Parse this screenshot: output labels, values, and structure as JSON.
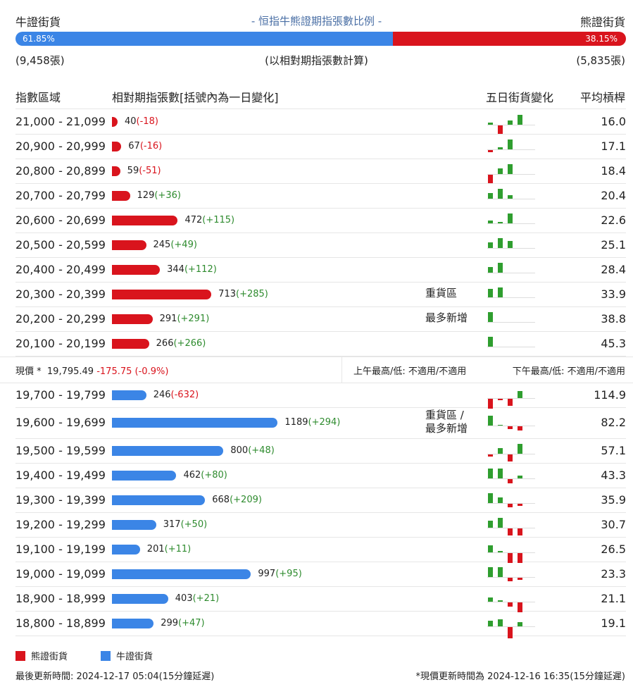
{
  "header": {
    "bull_title": "牛證街貨",
    "center_title": "- 恒指牛熊證期指張數比例 -",
    "bear_title": "熊證街貨",
    "bull_pct": "61.85%",
    "bear_pct": "38.15%",
    "bull_ratio": 0.6185,
    "bull_count": "(9,458張)",
    "bear_count": "(5,835張)",
    "basis": "(以相對期指張數計算)"
  },
  "columns": {
    "range": "指數區域",
    "contracts": "相對期指張數[括號內為一日變化]",
    "five_day": "五日街貨變化",
    "avg": "平均槓桿"
  },
  "colors": {
    "bull": "#3b85e6",
    "bear": "#d9141d",
    "up": "#2f9e2f"
  },
  "bear_rows": [
    {
      "range": "21,000 - 21,099",
      "count": 40,
      "count_text": "40",
      "change": "(-18)",
      "dir": "neg",
      "note": "",
      "avg": "16.0",
      "spark": [
        [
          0,
          3
        ],
        [
          0,
          -12
        ],
        [
          1,
          6
        ],
        [
          1,
          14
        ],
        [
          0,
          0
        ]
      ]
    },
    {
      "range": "20,900 - 20,999",
      "count": 67,
      "count_text": "67",
      "change": "(-16)",
      "dir": "neg",
      "note": "",
      "avg": "17.1",
      "spark": [
        [
          0,
          -3
        ],
        [
          1,
          3
        ],
        [
          1,
          14
        ],
        [
          0,
          0
        ],
        [
          0,
          0
        ]
      ]
    },
    {
      "range": "20,800 - 20,899",
      "count": 59,
      "count_text": "59",
      "change": "(-51)",
      "dir": "neg",
      "note": "",
      "avg": "18.4",
      "spark": [
        [
          0,
          -12
        ],
        [
          1,
          8
        ],
        [
          1,
          14
        ],
        [
          0,
          0
        ],
        [
          0,
          0
        ]
      ]
    },
    {
      "range": "20,700 - 20,799",
      "count": 129,
      "count_text": "129",
      "change": "(+36)",
      "dir": "pos",
      "note": "",
      "avg": "20.4",
      "spark": [
        [
          1,
          8
        ],
        [
          1,
          14
        ],
        [
          1,
          5
        ],
        [
          0,
          0
        ],
        [
          0,
          0
        ]
      ]
    },
    {
      "range": "20,600 - 20,699",
      "count": 472,
      "count_text": "472",
      "change": "(+115)",
      "dir": "pos",
      "note": "",
      "avg": "22.6",
      "spark": [
        [
          1,
          4
        ],
        [
          1,
          2
        ],
        [
          1,
          14
        ],
        [
          0,
          0
        ],
        [
          0,
          0
        ]
      ]
    },
    {
      "range": "20,500 - 20,599",
      "count": 245,
      "count_text": "245",
      "change": "(+49)",
      "dir": "pos",
      "note": "",
      "avg": "25.1",
      "spark": [
        [
          1,
          8
        ],
        [
          1,
          14
        ],
        [
          1,
          10
        ],
        [
          0,
          0
        ],
        [
          0,
          0
        ]
      ]
    },
    {
      "range": "20,400 - 20,499",
      "count": 344,
      "count_text": "344",
      "change": "(+112)",
      "dir": "pos",
      "note": "",
      "avg": "28.4",
      "spark": [
        [
          1,
          8
        ],
        [
          1,
          14
        ],
        [
          0,
          0
        ],
        [
          0,
          0
        ],
        [
          0,
          0
        ]
      ]
    },
    {
      "range": "20,300 - 20,399",
      "count": 713,
      "count_text": "713",
      "change": "(+285)",
      "dir": "pos",
      "note": "重貨區",
      "avg": "33.9",
      "spark": [
        [
          1,
          12
        ],
        [
          1,
          14
        ],
        [
          0,
          0
        ],
        [
          0,
          0
        ],
        [
          0,
          0
        ]
      ]
    },
    {
      "range": "20,200 - 20,299",
      "count": 291,
      "count_text": "291",
      "change": "(+291)",
      "dir": "pos",
      "note": "最多新增",
      "avg": "38.8",
      "spark": [
        [
          1,
          14
        ],
        [
          0,
          0
        ],
        [
          0,
          0
        ],
        [
          0,
          0
        ],
        [
          0,
          0
        ]
      ]
    },
    {
      "range": "20,100 - 20,199",
      "count": 266,
      "count_text": "266",
      "change": "(+266)",
      "dir": "pos",
      "note": "",
      "avg": "45.3",
      "spark": [
        [
          1,
          14
        ],
        [
          0,
          0
        ],
        [
          0,
          0
        ],
        [
          0,
          0
        ],
        [
          0,
          0
        ]
      ]
    }
  ],
  "current": {
    "label": "現價 *",
    "price": "19,795.49",
    "change": "-175.75 (-0.9%)",
    "am": "上午最高/低: 不適用/不適用",
    "pm": "下午最高/低: 不適用/不適用"
  },
  "bull_rows": [
    {
      "range": "19,700 - 19,799",
      "count": 246,
      "count_text": "246",
      "change": "(-632)",
      "dir": "neg",
      "note": "",
      "avg": "114.9",
      "spark": [
        [
          0,
          -14
        ],
        [
          0,
          -2
        ],
        [
          0,
          -10
        ],
        [
          1,
          10
        ],
        [
          0,
          0
        ]
      ]
    },
    {
      "range": "19,600 - 19,699",
      "count": 1189,
      "count_text": "1189",
      "change": "(+294)",
      "dir": "pos",
      "note": "重貨區 /\n最多新增",
      "avg": "82.2",
      "spark": [
        [
          1,
          14
        ],
        [
          1,
          1
        ],
        [
          0,
          -4
        ],
        [
          0,
          -6
        ],
        [
          0,
          0
        ]
      ]
    },
    {
      "range": "19,500 - 19,599",
      "count": 800,
      "count_text": "800",
      "change": "(+48)",
      "dir": "pos",
      "note": "",
      "avg": "57.1",
      "spark": [
        [
          0,
          -3
        ],
        [
          1,
          8
        ],
        [
          0,
          -10
        ],
        [
          1,
          14
        ],
        [
          0,
          0
        ]
      ]
    },
    {
      "range": "19,400 - 19,499",
      "count": 462,
      "count_text": "462",
      "change": "(+80)",
      "dir": "pos",
      "note": "",
      "avg": "43.3",
      "spark": [
        [
          1,
          14
        ],
        [
          1,
          14
        ],
        [
          0,
          -6
        ],
        [
          0,
          4
        ],
        [
          0,
          0
        ]
      ]
    },
    {
      "range": "19,300 - 19,399",
      "count": 668,
      "count_text": "668",
      "change": "(+209)",
      "dir": "pos",
      "note": "",
      "avg": "35.9",
      "spark": [
        [
          1,
          14
        ],
        [
          1,
          8
        ],
        [
          0,
          -5
        ],
        [
          0,
          -3
        ],
        [
          0,
          0
        ]
      ]
    },
    {
      "range": "19,200 - 19,299",
      "count": 317,
      "count_text": "317",
      "change": "(+50)",
      "dir": "pos",
      "note": "",
      "avg": "30.7",
      "spark": [
        [
          1,
          10
        ],
        [
          1,
          14
        ],
        [
          0,
          -10
        ],
        [
          0,
          -10
        ],
        [
          0,
          0
        ]
      ]
    },
    {
      "range": "19,100 - 19,199",
      "count": 201,
      "count_text": "201",
      "change": "(+11)",
      "dir": "pos",
      "note": "",
      "avg": "26.5",
      "spark": [
        [
          1,
          10
        ],
        [
          1,
          2
        ],
        [
          0,
          -14
        ],
        [
          0,
          -14
        ],
        [
          0,
          0
        ]
      ]
    },
    {
      "range": "19,000 - 19,099",
      "count": 997,
      "count_text": "997",
      "change": "(+95)",
      "dir": "pos",
      "note": "",
      "avg": "23.3",
      "spark": [
        [
          1,
          14
        ],
        [
          1,
          14
        ],
        [
          0,
          -5
        ],
        [
          0,
          -3
        ],
        [
          0,
          0
        ]
      ]
    },
    {
      "range": "18,900 - 18,999",
      "count": 403,
      "count_text": "403",
      "change": "(+21)",
      "dir": "pos",
      "note": "",
      "avg": "21.1",
      "spark": [
        [
          1,
          6
        ],
        [
          1,
          2
        ],
        [
          0,
          -6
        ],
        [
          0,
          -14
        ],
        [
          0,
          0
        ]
      ]
    },
    {
      "range": "18,800 - 18,899",
      "count": 299,
      "count_text": "299",
      "change": "(+47)",
      "dir": "pos",
      "note": "",
      "avg": "19.1",
      "spark": [
        [
          1,
          8
        ],
        [
          1,
          10
        ],
        [
          0,
          -16
        ],
        [
          1,
          6
        ],
        [
          0,
          0
        ]
      ]
    }
  ],
  "legend": {
    "bear": "熊證街貨",
    "bull": "牛證街貨"
  },
  "footer": {
    "left": "最後更新時間: 2024-12-17 05:04(15分鐘延遲)",
    "right": "*現價更新時間為 2024-12-16 16:35(15分鐘延遲)"
  }
}
